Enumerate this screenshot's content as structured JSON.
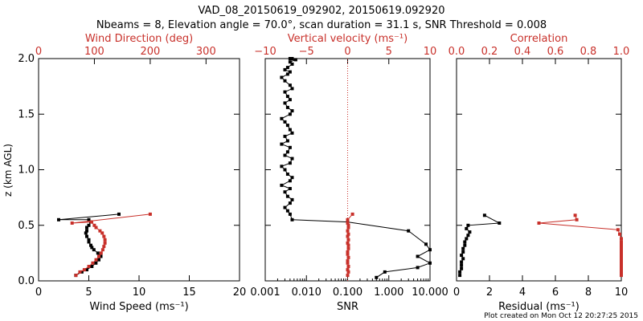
{
  "title_line1": "VAD_08_20150619_092902, 20150619.092920",
  "title_line2": "Nbeams = 8, Elevation angle = 70.0°, scan duration = 31.1 s, SNR Threshold = 0.008",
  "footer": "Plot created on Mon Oct 12 20:27:25 2015",
  "colors": {
    "black": "#000000",
    "red": "#c8302a"
  },
  "chart_data": [
    {
      "type": "line",
      "id": "wind",
      "ylabel": "z (km AGL)",
      "ylim": [
        0,
        2.0
      ],
      "yticks": [
        0.0,
        0.5,
        1.0,
        1.5,
        2.0
      ],
      "ytick_labels": [
        "0.0",
        "0.5",
        "1.0",
        "1.5",
        "2.0"
      ],
      "bottom_axis": {
        "label": "Wind Speed (ms⁻¹)",
        "range": [
          0,
          20
        ],
        "ticks": [
          0,
          5,
          10,
          15,
          20
        ],
        "tick_labels": [
          "0",
          "5",
          "10",
          "15",
          "20"
        ]
      },
      "top_axis": {
        "label": "Wind Direction (deg)",
        "range": [
          0,
          360
        ],
        "ticks": [
          0,
          100,
          200,
          300
        ],
        "tick_labels": [
          "0",
          "100",
          "200",
          "300"
        ],
        "color": "#c8302a"
      },
      "series": [
        {
          "name": "Wind Speed",
          "axis": "bottom",
          "color": "#000000",
          "x": [
            3.7,
            4.3,
            4.8,
            5.3,
            5.7,
            6.0,
            6.2,
            5.9,
            5.5,
            5.3,
            5.2,
            5.0,
            5.0,
            4.8,
            4.7,
            4.8,
            4.8,
            5.0,
            5.2,
            5.0,
            2.0,
            8.0
          ],
          "y": [
            0.05,
            0.08,
            0.1,
            0.13,
            0.16,
            0.19,
            0.22,
            0.25,
            0.28,
            0.3,
            0.32,
            0.35,
            0.37,
            0.4,
            0.43,
            0.45,
            0.48,
            0.5,
            0.53,
            0.55,
            0.55,
            0.6
          ]
        },
        {
          "name": "Wind Direction",
          "axis": "top",
          "color": "#c8302a",
          "x": [
            67,
            74,
            82,
            90,
            97,
            103,
            108,
            112,
            115,
            117,
            119,
            119,
            117,
            114,
            110,
            103,
            100,
            95,
            60,
            200
          ],
          "y": [
            0.05,
            0.08,
            0.1,
            0.13,
            0.16,
            0.19,
            0.22,
            0.25,
            0.28,
            0.31,
            0.34,
            0.37,
            0.4,
            0.43,
            0.45,
            0.48,
            0.5,
            0.53,
            0.52,
            0.6
          ]
        }
      ]
    },
    {
      "type": "line",
      "id": "snr",
      "ylim": [
        0,
        2.0
      ],
      "bottom_axis": {
        "label": "SNR",
        "scale": "log",
        "range": [
          0.001,
          10
        ],
        "ticks": [
          0.001,
          0.01,
          0.1,
          1,
          10
        ],
        "tick_labels": [
          "0.001",
          "0.010",
          "0.100",
          "1.000",
          "10.000"
        ]
      },
      "top_axis": {
        "label": "Vertical velocity (ms⁻¹)",
        "range": [
          -10,
          10
        ],
        "ticks": [
          -10,
          -5,
          0,
          5,
          10
        ],
        "tick_labels": [
          "−10",
          "−5",
          "0",
          "5",
          "10"
        ],
        "color": "#c8302a"
      },
      "reference_line": {
        "axis": "top",
        "value": 0,
        "style": "dotted",
        "color": "#c8302a"
      },
      "series": [
        {
          "name": "SNR",
          "axis": "bottom",
          "color": "#000000",
          "x": [
            0.5,
            0.8,
            5.0,
            10.0,
            5.0,
            10.0,
            8.0,
            3.0,
            0.1,
            0.0045,
            0.004,
            0.0035,
            0.003,
            0.004,
            0.0045,
            0.0035,
            0.003,
            0.004,
            0.0025,
            0.004,
            0.0045,
            0.0035,
            0.003,
            0.0025,
            0.004,
            0.0045,
            0.003,
            0.0035,
            0.004,
            0.0025,
            0.0035,
            0.003,
            0.0045,
            0.004,
            0.0035,
            0.003,
            0.0025,
            0.004,
            0.0045,
            0.0035,
            0.003,
            0.004,
            0.0035,
            0.003,
            0.0045,
            0.004,
            0.003,
            0.0025,
            0.0035,
            0.004,
            0.003,
            0.0035,
            0.0045,
            0.004,
            0.0055,
            0.004,
            0.0045
          ],
          "y": [
            0.03,
            0.08,
            0.12,
            0.16,
            0.22,
            0.28,
            0.33,
            0.45,
            0.53,
            0.55,
            0.6,
            0.63,
            0.66,
            0.7,
            0.73,
            0.76,
            0.8,
            0.83,
            0.86,
            0.9,
            0.93,
            0.96,
            1.0,
            1.03,
            1.06,
            1.1,
            1.13,
            1.16,
            1.2,
            1.23,
            1.26,
            1.3,
            1.33,
            1.36,
            1.4,
            1.43,
            1.46,
            1.5,
            1.53,
            1.56,
            1.6,
            1.63,
            1.66,
            1.7,
            1.73,
            1.76,
            1.8,
            1.83,
            1.86,
            1.88,
            1.9,
            1.92,
            1.95,
            1.97,
            1.99,
            2.0,
            2.0
          ]
        },
        {
          "name": "Vertical velocity",
          "axis": "top",
          "color": "#c8302a",
          "x": [
            0.0,
            0.1,
            0.0,
            0.1,
            0.0,
            0.0,
            0.1,
            0.0,
            0.0,
            0.1,
            0.1,
            0.0,
            0.1,
            0.0,
            0.1,
            0.0,
            0.1,
            0.1,
            0.0,
            0.0,
            0.6
          ],
          "y": [
            0.05,
            0.08,
            0.1,
            0.13,
            0.16,
            0.18,
            0.21,
            0.24,
            0.26,
            0.29,
            0.32,
            0.34,
            0.37,
            0.4,
            0.42,
            0.45,
            0.48,
            0.5,
            0.52,
            0.55,
            0.6
          ]
        }
      ]
    },
    {
      "type": "line",
      "id": "residual",
      "ylim": [
        0,
        2.0
      ],
      "bottom_axis": {
        "label": "Residual (ms⁻¹)",
        "range": [
          0,
          10
        ],
        "ticks": [
          0,
          2,
          4,
          6,
          8,
          10
        ],
        "tick_labels": [
          "0",
          "2",
          "4",
          "6",
          "8",
          "10"
        ]
      },
      "top_axis": {
        "label": "Correlation",
        "range": [
          0,
          1.0
        ],
        "ticks": [
          0.0,
          0.2,
          0.4,
          0.6,
          0.8,
          1.0
        ],
        "tick_labels": [
          "0.0",
          "0.2",
          "0.4",
          "0.6",
          "0.8",
          "1.0"
        ],
        "color": "#c8302a"
      },
      "series": [
        {
          "name": "Residual",
          "axis": "bottom",
          "color": "#000000",
          "x": [
            0.2,
            0.2,
            0.3,
            0.3,
            0.3,
            0.4,
            0.3,
            0.4,
            0.4,
            0.5,
            0.5,
            0.6,
            0.7,
            0.8,
            0.6,
            0.7,
            2.6,
            1.7
          ],
          "y": [
            0.05,
            0.08,
            0.11,
            0.14,
            0.17,
            0.2,
            0.23,
            0.26,
            0.29,
            0.32,
            0.35,
            0.38,
            0.41,
            0.44,
            0.47,
            0.5,
            0.52,
            0.59
          ]
        },
        {
          "name": "Correlation",
          "axis": "top",
          "color": "#c8302a",
          "x": [
            1.0,
            1.0,
            1.0,
            1.0,
            1.0,
            1.0,
            1.0,
            1.0,
            1.0,
            1.0,
            1.0,
            1.0,
            1.0,
            1.0,
            1.0,
            1.0,
            1.0,
            0.99,
            0.98,
            0.5,
            0.73,
            0.72
          ],
          "y": [
            0.05,
            0.07,
            0.09,
            0.11,
            0.13,
            0.15,
            0.17,
            0.19,
            0.21,
            0.23,
            0.25,
            0.27,
            0.29,
            0.31,
            0.33,
            0.35,
            0.38,
            0.42,
            0.46,
            0.52,
            0.55,
            0.59
          ]
        }
      ]
    }
  ]
}
